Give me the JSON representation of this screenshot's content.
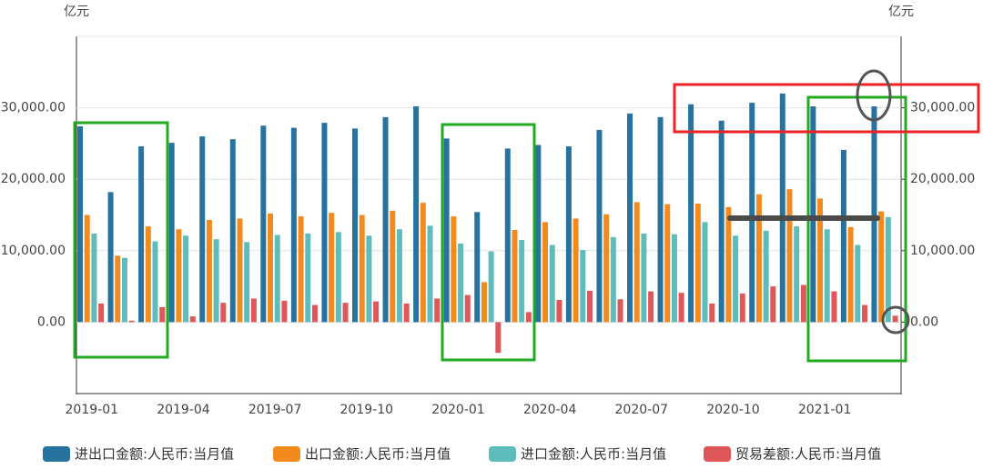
{
  "chart_data": {
    "type": "bar",
    "y_unit": "亿元",
    "y2_unit": "亿元",
    "categories": [
      "2019-01",
      null,
      null,
      "2019-04",
      null,
      null,
      "2019-07",
      null,
      null,
      "2019-10",
      null,
      null,
      "2020-01",
      null,
      null,
      "2020-04",
      null,
      null,
      "2020-07",
      null,
      null,
      "2020-10",
      null,
      null,
      "2021-01",
      null,
      null
    ],
    "ylim": [
      -10000,
      40000
    ],
    "yticks": [
      {
        "value": 0,
        "label": "0.00"
      },
      {
        "value": 10000,
        "label": "10,000.00"
      },
      {
        "value": 20000,
        "label": "20,000.00"
      },
      {
        "value": 30000,
        "label": "30,000.00"
      }
    ],
    "y2lim": [
      -10000,
      40000
    ],
    "y2ticks": [
      {
        "value": 0,
        "label": "0.00"
      },
      {
        "value": 10000,
        "label": "10,000.00"
      },
      {
        "value": 20000,
        "label": "20,000.00"
      },
      {
        "value": 30000,
        "label": "30,000.00"
      }
    ],
    "grid": true,
    "legend": "bottom",
    "series": [
      {
        "name": "进出口金额:人民币:当月值",
        "color": "#25739e",
        "values": [
          27400,
          18200,
          24600,
          25100,
          26000,
          25600,
          27500,
          27200,
          27900,
          27100,
          28700,
          30200,
          25700,
          15400,
          24300,
          24800,
          24600,
          26900,
          29200,
          28700,
          30500,
          28200,
          30700,
          32000,
          30200,
          24100,
          30200
        ]
      },
      {
        "name": "出口金额:人民币:当月值",
        "color": "#f28a1e",
        "values": [
          15000,
          9300,
          13400,
          13000,
          14300,
          14500,
          15200,
          14800,
          15300,
          15000,
          15600,
          16700,
          14800,
          5600,
          12900,
          14000,
          14500,
          15100,
          16800,
          16500,
          16600,
          16100,
          17900,
          18600,
          17300,
          13300,
          15500
        ]
      },
      {
        "name": "进口金额:人民币:当月值",
        "color": "#5fbcbd",
        "values": [
          12400,
          9000,
          11300,
          12100,
          11600,
          11200,
          12200,
          12400,
          12600,
          12100,
          13000,
          13500,
          11000,
          9900,
          11500,
          10800,
          10100,
          11900,
          12400,
          12300,
          14000,
          12100,
          12800,
          13400,
          13000,
          10800,
          14700
        ]
      },
      {
        "name": "贸易差额:人民币:当月值",
        "color": "#e0575a",
        "values": [
          2600,
          200,
          2100,
          800,
          2700,
          3300,
          3000,
          2400,
          2700,
          2900,
          2600,
          3300,
          3800,
          -4300,
          1400,
          3100,
          4400,
          3200,
          4300,
          4100,
          2600,
          4000,
          5000,
          5200,
          4300,
          2400,
          900
        ]
      }
    ]
  }
}
